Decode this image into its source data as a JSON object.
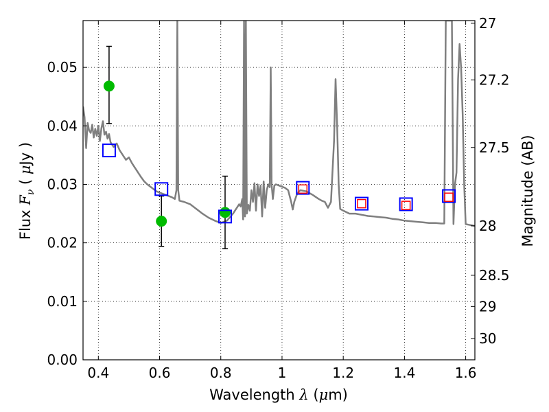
{
  "chart_data": {
    "type": "scatter",
    "xlabel": {
      "prefix": "Wavelength  ",
      "symbol": "λ",
      "unit_open": " (",
      "unit_mu": "μ",
      "unit_rest": "m)"
    },
    "ylabel": {
      "prefix": "Flux  ",
      "symbol": "F",
      "sub": "ν",
      "unit_open": "  ( ",
      "unit_mu": "μ",
      "unit_rest": "Jy )"
    },
    "y2label": "Magnitude (AB)",
    "xlim": [
      0.35,
      1.63
    ],
    "ylim": [
      0.0,
      0.058
    ],
    "grid": true,
    "x_ticks": [
      0.4,
      0.6,
      0.8,
      1.0,
      1.2,
      1.4,
      1.6
    ],
    "x_tick_labels": [
      "0.4",
      "0.6",
      "0.8",
      "1",
      "1.2",
      "1.4",
      "1.6"
    ],
    "y_ticks": [
      0.0,
      0.01,
      0.02,
      0.03,
      0.04,
      0.05
    ],
    "y_tick_labels": [
      "0.00",
      "0.01",
      "0.02",
      "0.03",
      "0.04",
      "0.05"
    ],
    "y2_ticks": [
      27,
      27.2,
      27.5,
      28,
      28.5,
      29,
      30
    ],
    "y2_tick_labels": [
      "27",
      "27.2",
      "27.5",
      "28",
      "28.5",
      "29",
      "30"
    ],
    "series": [
      {
        "kind": "line",
        "color": "#7f7f7f",
        "points": [
          [
            0.35,
            0.0433
          ],
          [
            0.355,
            0.0415
          ],
          [
            0.36,
            0.0362
          ],
          [
            0.365,
            0.0405
          ],
          [
            0.37,
            0.0392
          ],
          [
            0.375,
            0.0388
          ],
          [
            0.38,
            0.0402
          ],
          [
            0.385,
            0.038
          ],
          [
            0.39,
            0.0395
          ],
          [
            0.395,
            0.0383
          ],
          [
            0.4,
            0.04
          ],
          [
            0.405,
            0.0374
          ],
          [
            0.41,
            0.0396
          ],
          [
            0.415,
            0.0408
          ],
          [
            0.42,
            0.0385
          ],
          [
            0.425,
            0.039
          ],
          [
            0.43,
            0.0378
          ],
          [
            0.435,
            0.0386
          ],
          [
            0.44,
            0.0372
          ],
          [
            0.45,
            0.0364
          ],
          [
            0.46,
            0.037
          ],
          [
            0.47,
            0.0358
          ],
          [
            0.48,
            0.035
          ],
          [
            0.49,
            0.0342
          ],
          [
            0.5,
            0.0346
          ],
          [
            0.51,
            0.0336
          ],
          [
            0.52,
            0.0328
          ],
          [
            0.53,
            0.032
          ],
          [
            0.54,
            0.0312
          ],
          [
            0.55,
            0.0305
          ],
          [
            0.56,
            0.03
          ],
          [
            0.57,
            0.0296
          ],
          [
            0.58,
            0.0292
          ],
          [
            0.59,
            0.0288
          ],
          [
            0.6,
            0.0286
          ],
          [
            0.62,
            0.0282
          ],
          [
            0.64,
            0.0278
          ],
          [
            0.65,
            0.0275
          ],
          [
            0.655,
            0.029
          ],
          [
            0.658,
            0.058
          ],
          [
            0.661,
            0.029
          ],
          [
            0.665,
            0.0272
          ],
          [
            0.68,
            0.027
          ],
          [
            0.7,
            0.0266
          ],
          [
            0.72,
            0.0258
          ],
          [
            0.74,
            0.025
          ],
          [
            0.76,
            0.0243
          ],
          [
            0.78,
            0.0238
          ],
          [
            0.8,
            0.0234
          ],
          [
            0.82,
            0.0238
          ],
          [
            0.84,
            0.025
          ],
          [
            0.86,
            0.0266
          ],
          [
            0.865,
            0.0262
          ],
          [
            0.87,
            0.0275
          ],
          [
            0.873,
            0.024
          ],
          [
            0.876,
            0.058
          ],
          [
            0.879,
            0.0245
          ],
          [
            0.882,
            0.058
          ],
          [
            0.885,
            0.025
          ],
          [
            0.89,
            0.0265
          ],
          [
            0.895,
            0.0255
          ],
          [
            0.9,
            0.029
          ],
          [
            0.905,
            0.027
          ],
          [
            0.91,
            0.0302
          ],
          [
            0.915,
            0.0255
          ],
          [
            0.92,
            0.03
          ],
          [
            0.925,
            0.028
          ],
          [
            0.93,
            0.0298
          ],
          [
            0.935,
            0.0245
          ],
          [
            0.94,
            0.0305
          ],
          [
            0.945,
            0.026
          ],
          [
            0.95,
            0.029
          ],
          [
            0.955,
            0.03
          ],
          [
            0.96,
            0.0295
          ],
          [
            0.963,
            0.05
          ],
          [
            0.966,
            0.03
          ],
          [
            0.97,
            0.0275
          ],
          [
            0.975,
            0.0298
          ],
          [
            0.98,
            0.03
          ],
          [
            0.99,
            0.0298
          ],
          [
            1.0,
            0.0296
          ],
          [
            1.01,
            0.0294
          ],
          [
            1.02,
            0.029
          ],
          [
            1.03,
            0.027
          ],
          [
            1.035,
            0.0257
          ],
          [
            1.04,
            0.027
          ],
          [
            1.05,
            0.0285
          ],
          [
            1.06,
            0.029
          ],
          [
            1.08,
            0.0288
          ],
          [
            1.1,
            0.0282
          ],
          [
            1.12,
            0.0275
          ],
          [
            1.13,
            0.0272
          ],
          [
            1.14,
            0.027
          ],
          [
            1.15,
            0.026
          ],
          [
            1.16,
            0.027
          ],
          [
            1.17,
            0.0375
          ],
          [
            1.175,
            0.048
          ],
          [
            1.18,
            0.04
          ],
          [
            1.185,
            0.03
          ],
          [
            1.19,
            0.0258
          ],
          [
            1.2,
            0.0255
          ],
          [
            1.22,
            0.025
          ],
          [
            1.24,
            0.025
          ],
          [
            1.26,
            0.0248
          ],
          [
            1.28,
            0.0246
          ],
          [
            1.3,
            0.0245
          ],
          [
            1.32,
            0.0244
          ],
          [
            1.34,
            0.0243
          ],
          [
            1.36,
            0.0241
          ],
          [
            1.38,
            0.024
          ],
          [
            1.4,
            0.0238
          ],
          [
            1.42,
            0.0237
          ],
          [
            1.44,
            0.0236
          ],
          [
            1.46,
            0.0235
          ],
          [
            1.48,
            0.0234
          ],
          [
            1.5,
            0.0234
          ],
          [
            1.52,
            0.0233
          ],
          [
            1.53,
            0.0233
          ],
          [
            1.535,
            0.058
          ],
          [
            1.545,
            0.058
          ],
          [
            1.555,
            0.058
          ],
          [
            1.56,
            0.0232
          ],
          [
            1.565,
            0.03
          ],
          [
            1.57,
            0.032
          ],
          [
            1.575,
            0.048
          ],
          [
            1.58,
            0.054
          ],
          [
            1.585,
            0.05
          ],
          [
            1.59,
            0.042
          ],
          [
            1.595,
            0.03
          ],
          [
            1.6,
            0.0232
          ],
          [
            1.61,
            0.0231
          ],
          [
            1.62,
            0.023
          ],
          [
            1.63,
            0.0229
          ]
        ]
      },
      {
        "kind": "markers",
        "marker": "circle",
        "color": "#00bb00",
        "points": [
          {
            "x": 0.435,
            "y": 0.0468,
            "yerr_low": 0.0404,
            "yerr_high": 0.0536
          },
          {
            "x": 0.606,
            "y": 0.0237,
            "yerr_low": 0.0194,
            "yerr_high": 0.028
          },
          {
            "x": 0.814,
            "y": 0.0252,
            "yerr_low": 0.019,
            "yerr_high": 0.0314
          }
        ]
      },
      {
        "kind": "markers",
        "marker": "square-open",
        "color": "#0000ff",
        "points": [
          {
            "x": 0.435,
            "y": 0.0358
          },
          {
            "x": 0.606,
            "y": 0.0292
          },
          {
            "x": 0.814,
            "y": 0.0245
          },
          {
            "x": 1.068,
            "y": 0.0294
          },
          {
            "x": 1.26,
            "y": 0.0267
          },
          {
            "x": 1.405,
            "y": 0.0266
          },
          {
            "x": 1.545,
            "y": 0.028
          }
        ]
      },
      {
        "kind": "markers",
        "marker": "square-open-small",
        "color": "#ff0000",
        "points": [
          {
            "x": 1.068,
            "y": 0.0292
          },
          {
            "x": 1.26,
            "y": 0.0267
          },
          {
            "x": 1.405,
            "y": 0.0264
          },
          {
            "x": 1.545,
            "y": 0.0278
          }
        ]
      }
    ]
  }
}
